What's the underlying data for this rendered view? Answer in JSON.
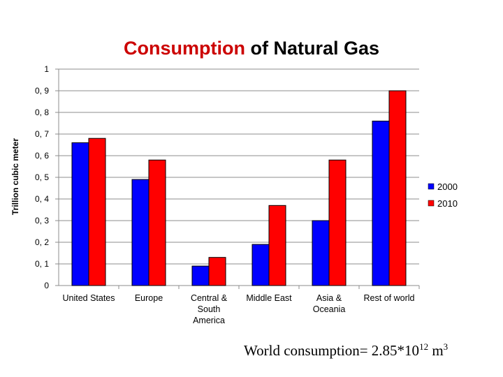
{
  "chart_data": {
    "type": "bar",
    "title_parts": [
      "Consumption",
      "of Natural Gas"
    ],
    "ylabel": "Trillion cubic meter",
    "xlabel": "",
    "categories": [
      "United States",
      "Europe",
      "Central & South America",
      "Middle East",
      "Asia & Oceania",
      "Rest of world"
    ],
    "category_lines": [
      [
        "United States"
      ],
      [
        "Europe"
      ],
      [
        "Central &",
        "South",
        "America"
      ],
      [
        "Middle East"
      ],
      [
        "Asia &",
        "Oceania"
      ],
      [
        "Rest of world"
      ]
    ],
    "series": [
      {
        "name": "2000",
        "color": "#0000ff",
        "values": [
          0.66,
          0.49,
          0.09,
          0.19,
          0.3,
          0.76
        ]
      },
      {
        "name": "2010",
        "color": "#ff0000",
        "values": [
          0.68,
          0.58,
          0.13,
          0.37,
          0.58,
          0.9
        ]
      }
    ],
    "ylim": [
      0,
      1
    ],
    "yticks": [
      0,
      0.1,
      0.2,
      0.3,
      0.4,
      0.5,
      0.6,
      0.7,
      0.8,
      0.9,
      1
    ],
    "ytick_labels": [
      "0",
      "0, 1",
      "0, 2",
      "0, 3",
      "0, 4",
      "0, 5",
      "0, 6",
      "0, 7",
      "0, 8",
      "0, 9",
      "1"
    ],
    "grid": true,
    "legend_position": "right"
  },
  "footnote": {
    "prefix": "World consumption= 2.85*10",
    "exponent": "12",
    "unit": " m",
    "unit_exponent": "3"
  }
}
